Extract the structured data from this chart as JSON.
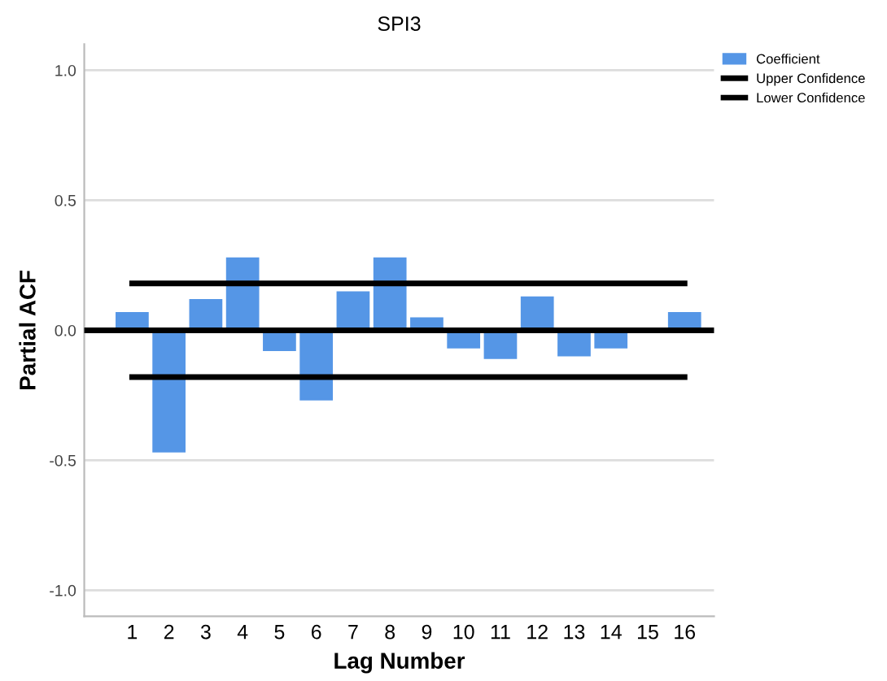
{
  "chart_data": {
    "type": "bar",
    "title": "SPI3",
    "xlabel": "Lag Number",
    "ylabel": "Partial ACF",
    "categories": [
      "1",
      "2",
      "3",
      "4",
      "5",
      "6",
      "7",
      "8",
      "9",
      "10",
      "11",
      "12",
      "13",
      "14",
      "15",
      "16"
    ],
    "series": [
      {
        "name": "Coefficient",
        "color": "#5596e6",
        "values": [
          0.07,
          -0.47,
          0.12,
          0.28,
          -0.08,
          -0.27,
          0.15,
          0.28,
          0.05,
          -0.07,
          -0.11,
          0.13,
          -0.1,
          -0.07,
          0,
          0.07
        ]
      },
      {
        "name": "Upper Confidence",
        "type": "line",
        "color": "#000000",
        "values": [
          0.18,
          0.18,
          0.18,
          0.18,
          0.18,
          0.18,
          0.18,
          0.18,
          0.18,
          0.18,
          0.18,
          0.18,
          0.18,
          0.18,
          0.18,
          0.18
        ]
      },
      {
        "name": "Lower Confidence",
        "type": "line",
        "color": "#000000",
        "values": [
          -0.18,
          -0.18,
          -0.18,
          -0.18,
          -0.18,
          -0.18,
          -0.18,
          -0.18,
          -0.18,
          -0.18,
          -0.18,
          -0.18,
          -0.18,
          -0.18,
          -0.18,
          -0.18
        ]
      }
    ],
    "ylim": [
      -1.1,
      1.1
    ],
    "yticks": [
      {
        "value": 1,
        "label": "1.0"
      },
      {
        "value": 0.5,
        "label": "0.5"
      },
      {
        "value": 0,
        "label": "0.0"
      },
      {
        "value": -0.5,
        "label": "-0.5"
      },
      {
        "value": -1,
        "label": "-1.0"
      }
    ],
    "grid": "y",
    "legend": "top right",
    "marker": "none",
    "line_style": "solid",
    "ref_lines": [
      {
        "axis": "y",
        "value": 0,
        "color": "#000000",
        "line_style": "solid"
      }
    ]
  }
}
